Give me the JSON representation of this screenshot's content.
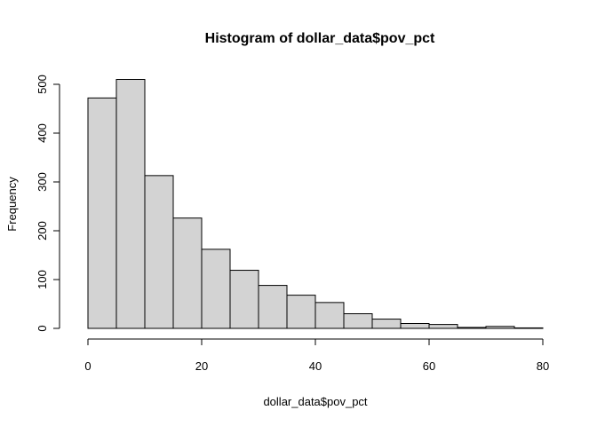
{
  "chart_data": {
    "type": "bar",
    "title": "Histogram of dollar_data$pov_pct",
    "xlabel": "dollar_data$pov_pct",
    "ylabel": "Frequency",
    "bin_edges": [
      0,
      5,
      10,
      15,
      20,
      25,
      30,
      35,
      40,
      45,
      50,
      55,
      60,
      65,
      70,
      75,
      80
    ],
    "values": [
      472,
      510,
      313,
      226,
      162,
      119,
      88,
      68,
      53,
      30,
      19,
      10,
      8,
      2,
      4,
      1
    ],
    "xlim": [
      0,
      80
    ],
    "ylim": [
      0,
      500
    ],
    "x_ticks": [
      0,
      20,
      40,
      60,
      80
    ],
    "y_ticks": [
      0,
      100,
      200,
      300,
      400,
      500
    ],
    "grid": false,
    "colors": {
      "bar_fill": "#d3d3d3",
      "bar_stroke": "#000000"
    }
  }
}
